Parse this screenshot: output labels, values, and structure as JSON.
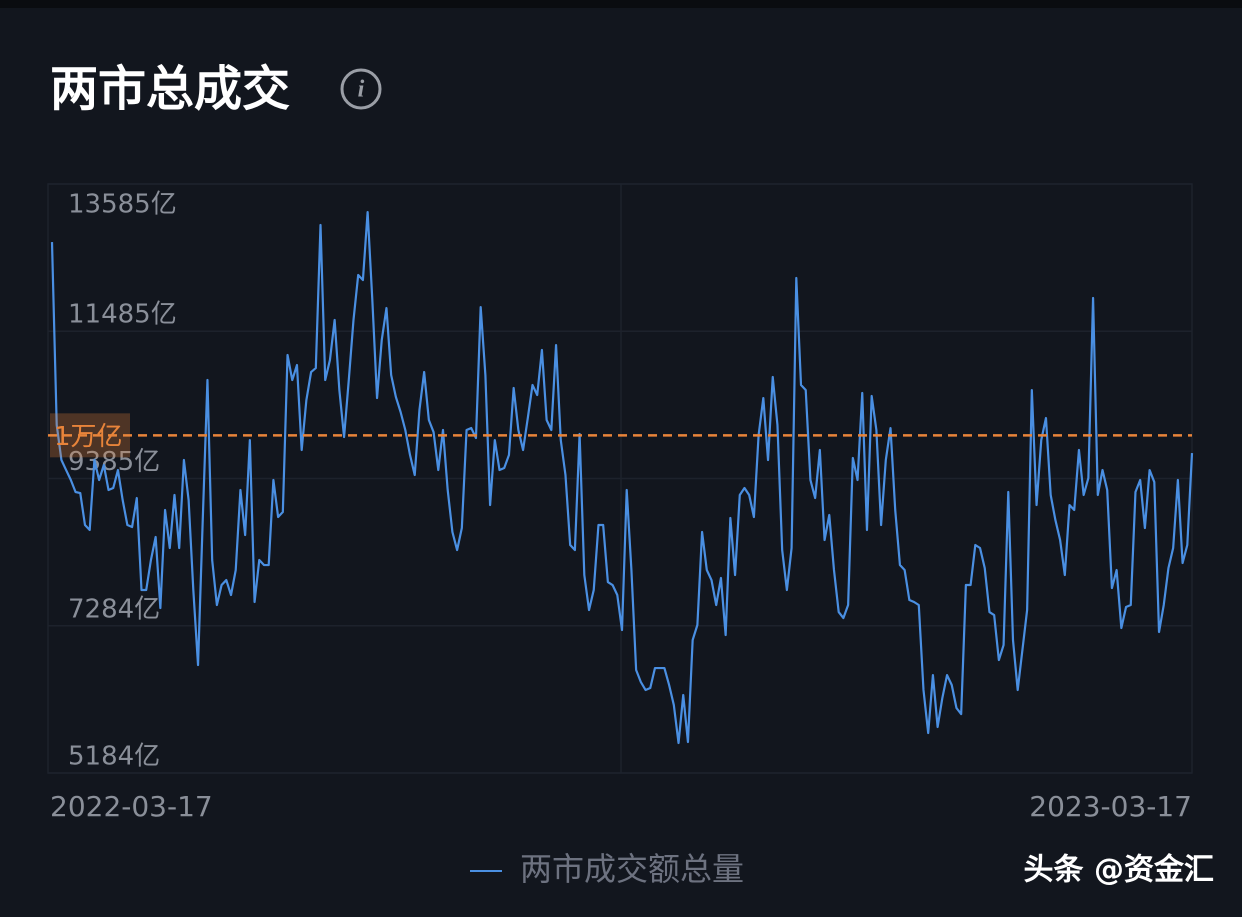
{
  "chart_data": {
    "type": "line",
    "title": "两市总成交",
    "categories": [
      "2022-03-17",
      null,
      null,
      null,
      null,
      null,
      null,
      null,
      null,
      null,
      null,
      null,
      null,
      null,
      null,
      null,
      null,
      null,
      null,
      null,
      null,
      null,
      null,
      null,
      null,
      null,
      null,
      null,
      null,
      null,
      null,
      null,
      null,
      null,
      null,
      null,
      null,
      null,
      null,
      null,
      null,
      null,
      null,
      null,
      null,
      null,
      null,
      null,
      null,
      null,
      null,
      null,
      null,
      null,
      null,
      null,
      null,
      null,
      null,
      null,
      null,
      null,
      null,
      null,
      null,
      null,
      null,
      null,
      null,
      null,
      null,
      null,
      null,
      null,
      null,
      null,
      null,
      null,
      null,
      null,
      null,
      null,
      null,
      null,
      null,
      null,
      null,
      null,
      null,
      null,
      null,
      null,
      null,
      null,
      null,
      null,
      null,
      null,
      null,
      null,
      null,
      null,
      null,
      null,
      null,
      null,
      null,
      null,
      null,
      null,
      null,
      null,
      null,
      null,
      null,
      null,
      null,
      null,
      null,
      null,
      null,
      null,
      null,
      null,
      null,
      null,
      null,
      null,
      null,
      null,
      null,
      null,
      null,
      null,
      null,
      null,
      null,
      null,
      null,
      null,
      null,
      null,
      null,
      null,
      null,
      null,
      null,
      null,
      null,
      null,
      null,
      null,
      null,
      null,
      null,
      null,
      null,
      null,
      null,
      null,
      null,
      null,
      null,
      null,
      null,
      null,
      null,
      null,
      null,
      null,
      null,
      null,
      null,
      null,
      null,
      null,
      null,
      null,
      null,
      null,
      null,
      null,
      null,
      null,
      null,
      null,
      null,
      null,
      null,
      null,
      null,
      null,
      null,
      null,
      null,
      null,
      null,
      null,
      null,
      null,
      null,
      null,
      null,
      null,
      null,
      null,
      null,
      null,
      null,
      null,
      null,
      null,
      null,
      null,
      null,
      null,
      null,
      null,
      null,
      null,
      null,
      null,
      null,
      null,
      null,
      null,
      null,
      null,
      null,
      null,
      null,
      null,
      null,
      null,
      null,
      null,
      null,
      null,
      null,
      null,
      null,
      null,
      "2023-03-17"
    ],
    "series": [
      {
        "name": "两市成交额总量",
        "color": "#4a8fe2",
        "values": [
          12757,
          10147,
          9648,
          9505,
          9363,
          9192,
          9177,
          8721,
          8650,
          9648,
          9363,
          9577,
          9220,
          9249,
          9505,
          9078,
          8721,
          8692,
          9106,
          7794,
          7794,
          8222,
          8550,
          7537,
          8935,
          8393,
          9149,
          8393,
          9648,
          9078,
          7794,
          6724,
          8792,
          10789,
          8222,
          7580,
          7865,
          7936,
          7723,
          8079,
          9220,
          8578,
          9933,
          7623,
          8222,
          8150,
          8150,
          9363,
          8835,
          8906,
          11146,
          10789,
          11003,
          9791,
          10504,
          10903,
          10960,
          13000,
          10789,
          11074,
          11645,
          10646,
          9976,
          10789,
          11645,
          12287,
          12215,
          13185,
          11930,
          10532,
          11360,
          11816,
          10860,
          10547,
          10333,
          10076,
          9719,
          9434,
          10361,
          10903,
          10219,
          10047,
          9505,
          10076,
          9220,
          8621,
          8364,
          8678,
          10076,
          10104,
          9962,
          11830,
          10860,
          9006,
          9933,
          9505,
          9534,
          9719,
          10675,
          10076,
          9791,
          10247,
          10718,
          10575,
          11217,
          10219,
          10076,
          11288,
          9933,
          9434,
          8436,
          8364,
          10019,
          8008,
          7509,
          7794,
          8721,
          8721,
          7908,
          7865,
          7723,
          7223,
          9220,
          8079,
          6653,
          6482,
          6368,
          6396,
          6681,
          6681,
          6681,
          6439,
          6154,
          5612,
          6296,
          5626,
          7081,
          7295,
          8621,
          8079,
          7936,
          7580,
          7965,
          7152,
          8821,
          8008,
          9149,
          9249,
          9149,
          8835,
          10005,
          10532,
          9648,
          10832,
          10147,
          8364,
          7794,
          8393,
          12244,
          10718,
          10646,
          9363,
          9106,
          9791,
          8507,
          8864,
          8079,
          7480,
          7394,
          7580,
          9677,
          9363,
          10604,
          8650,
          10561,
          10076,
          8721,
          9648,
          10104,
          8935,
          8150,
          8079,
          7651,
          7623,
          7580,
          6368,
          5754,
          6581,
          5840,
          6253,
          6581,
          6439,
          6111,
          6025,
          7865,
          7865,
          8436,
          8393,
          8108,
          7480,
          7437,
          6795,
          7009,
          9192,
          7081,
          6368,
          6938,
          7509,
          10646,
          9006,
          9933,
          10247,
          9149,
          8792,
          8507,
          8008,
          9006,
          8935,
          9791,
          9149,
          9391,
          11959,
          9149,
          9505,
          9220,
          7822,
          8079,
          7252,
          7551,
          7580,
          9192,
          9363,
          8678,
          9505,
          9334,
          7195,
          7580,
          8108,
          8393,
          9363,
          8179,
          8436,
          9748
        ]
      }
    ],
    "ylim": [
      5184,
      13585
    ],
    "yticks": [
      {
        "value": 5184,
        "label": "5184亿"
      },
      {
        "value": 7284,
        "label": "7284亿"
      },
      {
        "value": 9385,
        "label": "9385亿"
      },
      {
        "value": 11485,
        "label": "11485亿"
      },
      {
        "value": 13585,
        "label": "13585亿"
      }
    ],
    "grid": true,
    "reference_line": {
      "value": 10000,
      "label": "1万亿",
      "color": "#e8843a"
    },
    "watermark": "头条 @资金汇"
  }
}
